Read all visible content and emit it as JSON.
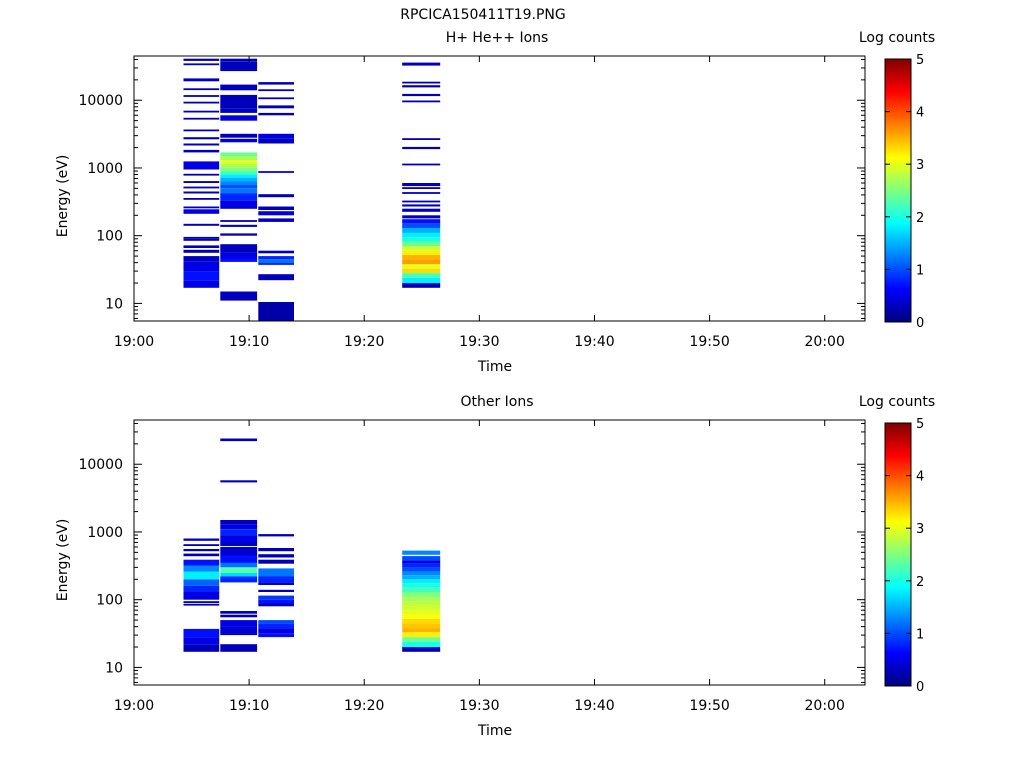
{
  "figure_title": "RPCICA150411T19.PNG",
  "colors": {
    "colormap": [
      "#00007f",
      "#0000ff",
      "#007fff",
      "#00ffff",
      "#7fff7f",
      "#ffff00",
      "#ff7f00",
      "#ff0000",
      "#7f0000"
    ]
  },
  "chart_data": [
    {
      "type": "heatmap",
      "title": "H+ He++ Ions",
      "xlabel": "Time",
      "ylabel": "Energy (eV)",
      "x_ticks": [
        "19:00",
        "19:10",
        "19:20",
        "19:30",
        "19:40",
        "19:50",
        "20:00"
      ],
      "x_range_minutes": [
        0,
        63.5
      ],
      "y_scale": "log",
      "y_range": [
        5.5,
        45000
      ],
      "y_ticks": [
        "10",
        "100",
        "1000",
        "10000"
      ],
      "colorbar": {
        "label": "Log counts",
        "range": [
          0,
          5
        ],
        "ticks": [
          "0",
          "1",
          "2",
          "3",
          "4",
          "5"
        ]
      },
      "columns": [
        {
          "t_start": 4.3,
          "t_end": 7.4,
          "rows": [
            [
              17,
              22,
              0.5
            ],
            [
              22,
              30,
              0.7
            ],
            [
              30,
              42,
              0.5
            ],
            [
              42,
              50,
              0.3
            ],
            [
              56,
              62,
              0.3
            ],
            [
              66,
              72,
              0.3
            ],
            [
              84,
              90,
              0.3
            ],
            [
              90,
              96,
              0.3
            ],
            [
              140,
              150,
              0.3
            ],
            [
              210,
              245,
              0.5
            ],
            [
              255,
              270,
              0.3
            ],
            [
              340,
              360,
              0.3
            ],
            [
              420,
              450,
              0.3
            ],
            [
              500,
              530,
              0.3
            ],
            [
              600,
              640,
              0.3
            ],
            [
              780,
              820,
              0.3
            ],
            [
              950,
              1250,
              0.5
            ],
            [
              1700,
              1850,
              0.3
            ],
            [
              2150,
              2300,
              0.3
            ],
            [
              2650,
              2850,
              0.3
            ],
            [
              3500,
              3700,
              0.3
            ],
            [
              5200,
              5500,
              0.3
            ],
            [
              6600,
              7000,
              0.3
            ],
            [
              9000,
              9500,
              0.3
            ],
            [
              11300,
              11900,
              0.3
            ],
            [
              14200,
              15000,
              0.3
            ],
            [
              19000,
              21000,
              0.3
            ],
            [
              33000,
              35000,
              0.3
            ],
            [
              38000,
              41000,
              0.3
            ]
          ]
        },
        {
          "t_start": 7.5,
          "t_end": 10.7,
          "rows": [
            [
              11,
              15,
              0.3
            ],
            [
              41,
              46,
              0.7
            ],
            [
              46,
              56,
              0.5
            ],
            [
              56,
              75,
              0.3
            ],
            [
              100,
              108,
              0.3
            ],
            [
              135,
              145,
              0.3
            ],
            [
              160,
              170,
              0.3
            ],
            [
              250,
              330,
              0.5
            ],
            [
              330,
              420,
              0.8
            ],
            [
              420,
              500,
              1.2
            ],
            [
              500,
              560,
              1.0
            ],
            [
              560,
              640,
              1.3
            ],
            [
              640,
              720,
              1.5
            ],
            [
              720,
              800,
              1.8
            ],
            [
              800,
              900,
              2.2
            ],
            [
              900,
              1000,
              2.5
            ],
            [
              1000,
              1150,
              2.7
            ],
            [
              1150,
              1300,
              3.0
            ],
            [
              1300,
              1500,
              2.7
            ],
            [
              1500,
              1700,
              2.4
            ],
            [
              2400,
              2700,
              0.5
            ],
            [
              2800,
              3200,
              0.3
            ],
            [
              5000,
              6000,
              0.5
            ],
            [
              6500,
              7500,
              0.3
            ],
            [
              7500,
              12000,
              0.3
            ],
            [
              14000,
              17000,
              0.3
            ],
            [
              27000,
              37000,
              0.3
            ],
            [
              37000,
              41000,
              0.3
            ]
          ]
        },
        {
          "t_start": 10.8,
          "t_end": 13.9,
          "rows": [
            [
              5.5,
              10.5,
              0.2
            ],
            [
              22,
              27,
              0.3
            ],
            [
              37,
              40,
              0.8
            ],
            [
              40,
              45,
              1.2
            ],
            [
              45,
              50,
              0.8
            ],
            [
              55,
              60,
              0.3
            ],
            [
              160,
              180,
              0.3
            ],
            [
              200,
              230,
              0.5
            ],
            [
              240,
              270,
              0.3
            ],
            [
              370,
              410,
              0.3
            ],
            [
              850,
              900,
              0.6
            ],
            [
              2300,
              2700,
              0.3
            ],
            [
              2700,
              3200,
              0.5
            ],
            [
              6000,
              6500,
              0.3
            ],
            [
              7600,
              8400,
              0.3
            ],
            [
              10500,
              11000,
              0.3
            ],
            [
              13700,
              14500,
              0.3
            ],
            [
              17000,
              18500,
              0.3
            ]
          ]
        },
        {
          "t_start": 23.3,
          "t_end": 26.6,
          "rows": [
            [
              17,
              20,
              0.3
            ],
            [
              20,
              24,
              1.8
            ],
            [
              24,
              28,
              2.2
            ],
            [
              28,
              33,
              3.3
            ],
            [
              33,
              38,
              3.0
            ],
            [
              38,
              45,
              3.6
            ],
            [
              45,
              52,
              3.5
            ],
            [
              52,
              60,
              3.2
            ],
            [
              60,
              70,
              2.9
            ],
            [
              70,
              82,
              2.4
            ],
            [
              82,
              95,
              2.0
            ],
            [
              95,
              110,
              1.8
            ],
            [
              110,
              130,
              1.5
            ],
            [
              130,
              150,
              1.0
            ],
            [
              150,
              175,
              0.7
            ],
            [
              180,
              200,
              0.4
            ],
            [
              225,
              250,
              0.3
            ],
            [
              270,
              290,
              0.3
            ],
            [
              310,
              330,
              0.3
            ],
            [
              420,
              440,
              0.3
            ],
            [
              490,
              520,
              0.3
            ],
            [
              540,
              600,
              0.3
            ],
            [
              1100,
              1160,
              0.3
            ],
            [
              1900,
              2050,
              0.3
            ],
            [
              2600,
              2750,
              0.3
            ],
            [
              9300,
              9900,
              0.3
            ],
            [
              11500,
              12400,
              0.3
            ],
            [
              15500,
              16700,
              0.3
            ],
            [
              18000,
              18800,
              0.3
            ],
            [
              32500,
              36000,
              0.3
            ]
          ]
        }
      ]
    },
    {
      "type": "heatmap",
      "title": "Other Ions",
      "xlabel": "Time",
      "ylabel": "Energy (eV)",
      "x_ticks": [
        "19:00",
        "19:10",
        "19:20",
        "19:30",
        "19:40",
        "19:50",
        "20:00"
      ],
      "x_range_minutes": [
        0,
        63.5
      ],
      "y_scale": "log",
      "y_range": [
        5.5,
        45000
      ],
      "y_ticks": [
        "10",
        "100",
        "1000",
        "10000"
      ],
      "colorbar": {
        "label": "Log counts",
        "range": [
          0,
          5
        ],
        "ticks": [
          "0",
          "1",
          "2",
          "3",
          "4",
          "5"
        ]
      },
      "columns": [
        {
          "t_start": 4.3,
          "t_end": 7.4,
          "rows": [
            [
              17,
              22,
              0.3
            ],
            [
              22,
              28,
              0.5
            ],
            [
              28,
              37,
              0.7
            ],
            [
              82,
              87,
              0.3
            ],
            [
              90,
              95,
              0.3
            ],
            [
              100,
              130,
              0.5
            ],
            [
              130,
              160,
              0.8
            ],
            [
              160,
              200,
              1.1
            ],
            [
              200,
              260,
              1.8
            ],
            [
              260,
              320,
              1.3
            ],
            [
              320,
              390,
              0.7
            ],
            [
              440,
              480,
              0.3
            ],
            [
              520,
              560,
              0.3
            ],
            [
              620,
              660,
              0.3
            ],
            [
              740,
              800,
              0.3
            ]
          ]
        },
        {
          "t_start": 7.5,
          "t_end": 10.7,
          "rows": [
            [
              17,
              22,
              0.3
            ],
            [
              30,
              40,
              0.4
            ],
            [
              40,
              50,
              0.5
            ],
            [
              55,
              60,
              0.3
            ],
            [
              62,
              68,
              0.3
            ],
            [
              180,
              220,
              0.8
            ],
            [
              220,
              250,
              1.7
            ],
            [
              250,
              300,
              2.3
            ],
            [
              300,
              350,
              1.2
            ],
            [
              350,
              450,
              0.7
            ],
            [
              450,
              600,
              0.4
            ],
            [
              620,
              700,
              0.3
            ],
            [
              700,
              900,
              0.5
            ],
            [
              900,
              1100,
              0.8
            ],
            [
              1100,
              1300,
              0.5
            ],
            [
              1300,
              1500,
              0.3
            ],
            [
              5400,
              5800,
              0.3
            ],
            [
              22000,
              24000,
              0.3
            ]
          ]
        },
        {
          "t_start": 10.8,
          "t_end": 13.9,
          "rows": [
            [
              28,
              32,
              0.7
            ],
            [
              32,
              38,
              0.5
            ],
            [
              38,
              44,
              0.8
            ],
            [
              44,
              50,
              1.0
            ],
            [
              80,
              88,
              0.3
            ],
            [
              88,
              100,
              0.7
            ],
            [
              100,
              115,
              0.9
            ],
            [
              130,
              140,
              0.3
            ],
            [
              165,
              180,
              0.4
            ],
            [
              180,
              220,
              0.8
            ],
            [
              220,
              290,
              1.2
            ],
            [
              340,
              390,
              0.3
            ],
            [
              420,
              470,
              0.3
            ],
            [
              520,
              580,
              0.3
            ],
            [
              860,
              930,
              0.3
            ]
          ]
        },
        {
          "t_start": 23.3,
          "t_end": 26.6,
          "rows": [
            [
              17,
              20,
              0.3
            ],
            [
              20,
              24,
              2.0
            ],
            [
              24,
              28,
              2.4
            ],
            [
              28,
              33,
              3.2
            ],
            [
              33,
              38,
              3.5
            ],
            [
              38,
              45,
              3.4
            ],
            [
              45,
              52,
              3.3
            ],
            [
              52,
              60,
              3.1
            ],
            [
              60,
              70,
              3.0
            ],
            [
              70,
              82,
              2.9
            ],
            [
              82,
              95,
              2.8
            ],
            [
              95,
              110,
              2.7
            ],
            [
              110,
              130,
              2.5
            ],
            [
              130,
              150,
              2.2
            ],
            [
              150,
              175,
              2.0
            ],
            [
              175,
              200,
              1.8
            ],
            [
              200,
              230,
              1.5
            ],
            [
              230,
              260,
              1.3
            ],
            [
              260,
              300,
              1.0
            ],
            [
              300,
              340,
              0.8
            ],
            [
              340,
              380,
              0.5
            ],
            [
              380,
              440,
              1.0
            ],
            [
              460,
              530,
              1.3
            ]
          ]
        }
      ]
    }
  ]
}
